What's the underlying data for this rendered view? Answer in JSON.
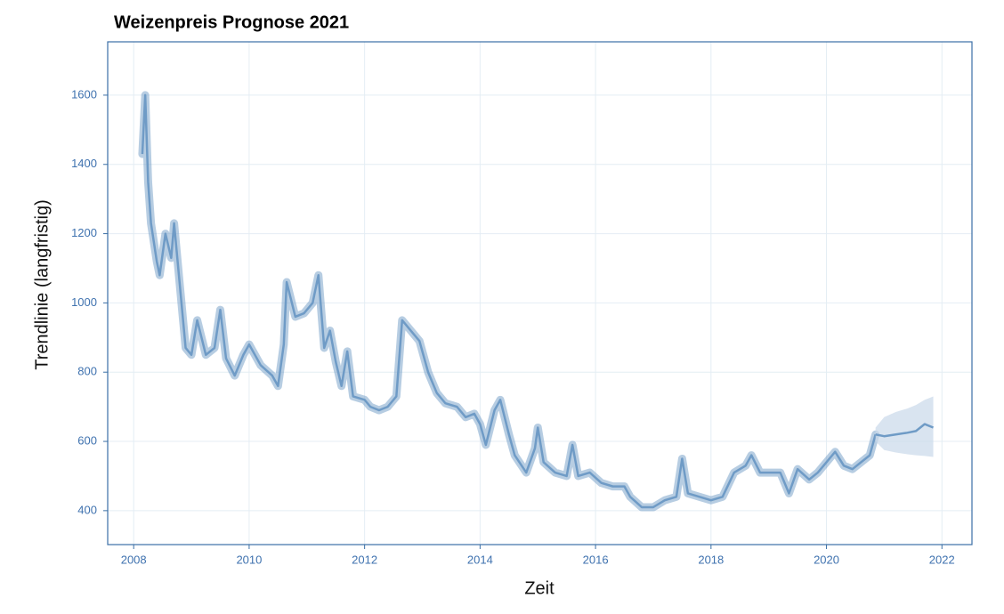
{
  "chart_data": {
    "type": "line",
    "title": "Weizenpreis Prognose 2021",
    "xlabel": "Zeit",
    "ylabel": "Trendlinie (langfristig)",
    "xlim": [
      2007.55,
      2022.52
    ],
    "ylim": [
      302,
      1754
    ],
    "xticks": [
      2008,
      2010,
      2012,
      2014,
      2016,
      2018,
      2020,
      2022
    ],
    "yticks": [
      400,
      600,
      800,
      1000,
      1200,
      1400,
      1600
    ],
    "grid": true,
    "series": [
      {
        "color": "#6f9bc6",
        "x": [
          2008.15,
          2008.2,
          2008.25,
          2008.3,
          2008.4,
          2008.45,
          2008.55,
          2008.65,
          2008.7,
          2008.8,
          2008.9,
          2009.0,
          2009.1,
          2009.25,
          2009.4,
          2009.5,
          2009.6,
          2009.75,
          2009.9,
          2010.0,
          2010.2,
          2010.4,
          2010.5,
          2010.6,
          2010.65,
          2010.8,
          2010.95,
          2011.1,
          2011.2,
          2011.3,
          2011.4,
          2011.5,
          2011.6,
          2011.7,
          2011.8,
          2012.0,
          2012.1,
          2012.25,
          2012.4,
          2012.55,
          2012.65,
          2012.8,
          2012.95,
          2013.1,
          2013.25,
          2013.4,
          2013.6,
          2013.75,
          2013.9,
          2014.0,
          2014.1,
          2014.25,
          2014.35,
          2014.5,
          2014.6,
          2014.8,
          2014.95,
          2015.0,
          2015.1,
          2015.3,
          2015.5,
          2015.6,
          2015.7,
          2015.9,
          2016.1,
          2016.3,
          2016.5,
          2016.6,
          2016.8,
          2017.0,
          2017.2,
          2017.4,
          2017.5,
          2017.6,
          2017.8,
          2018.0,
          2018.2,
          2018.4,
          2018.6,
          2018.7,
          2018.85,
          2019.0,
          2019.2,
          2019.35,
          2019.5,
          2019.7,
          2019.85,
          2020.0,
          2020.15,
          2020.3,
          2020.45,
          2020.6,
          2020.75,
          2020.85
        ],
        "values": [
          1430,
          1600,
          1350,
          1230,
          1120,
          1080,
          1200,
          1130,
          1230,
          1050,
          870,
          850,
          950,
          850,
          870,
          980,
          840,
          790,
          850,
          880,
          820,
          790,
          760,
          880,
          1060,
          960,
          970,
          1000,
          1080,
          870,
          920,
          830,
          760,
          860,
          730,
          720,
          700,
          690,
          700,
          730,
          950,
          920,
          890,
          800,
          740,
          710,
          700,
          670,
          680,
          650,
          590,
          690,
          720,
          620,
          560,
          510,
          580,
          640,
          540,
          510,
          500,
          590,
          500,
          510,
          480,
          470,
          470,
          440,
          410,
          410,
          430,
          440,
          550,
          450,
          440,
          430,
          440,
          510,
          530,
          560,
          510,
          510,
          510,
          450,
          520,
          490,
          510,
          540,
          570,
          530,
          520,
          540,
          560,
          620
        ]
      },
      {
        "color": "#6f9bc6",
        "x": [
          2020.85,
          2021.0,
          2021.2,
          2021.4,
          2021.55,
          2021.7,
          2021.85
        ],
        "values": [
          620,
          615,
          620,
          625,
          630,
          650,
          640
        ],
        "lower": [
          600,
          575,
          568,
          563,
          560,
          558,
          555
        ],
        "upper": [
          640,
          670,
          685,
          695,
          705,
          720,
          730
        ],
        "band_color": "#c9d8ea"
      }
    ]
  }
}
